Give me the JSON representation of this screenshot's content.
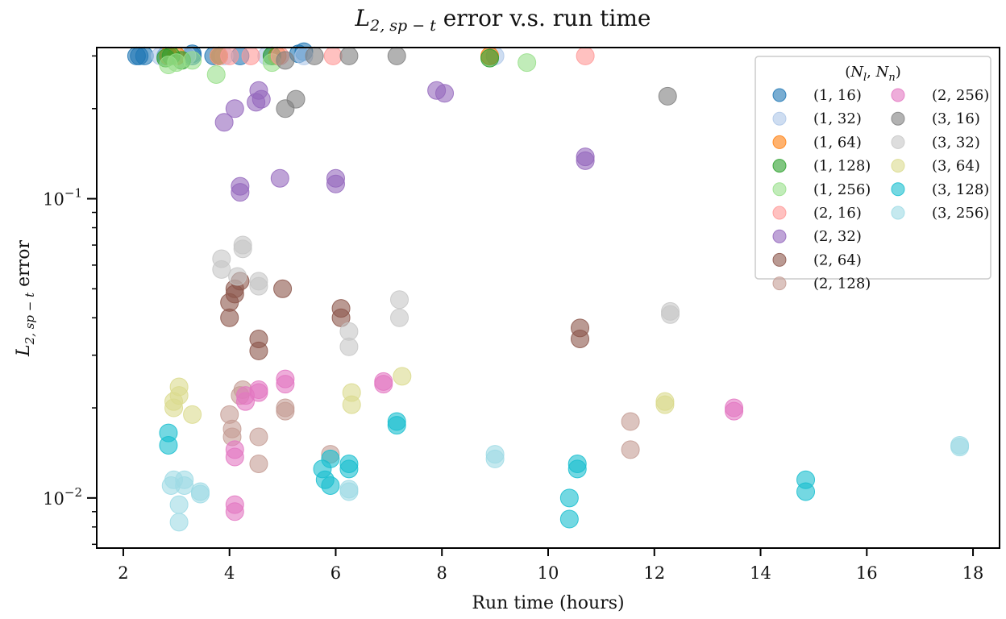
{
  "chart_data": {
    "type": "scatter",
    "title": "L_{2,sp−t} error v.s. run time",
    "title_parts": {
      "sym": "L",
      "sub": "2, sp − t",
      "rest": " error v.s. run time"
    },
    "xlabel": "Run time (hours)",
    "ylabel": "L_{2,sp−t} error",
    "ylabel_parts": {
      "sym": "L",
      "sub": "2, sp − t",
      "rest": " error"
    },
    "xlim": [
      1.5,
      18.5
    ],
    "ylim": [
      0.0068,
      0.32
    ],
    "yscale": "log",
    "xticks": [
      2,
      4,
      6,
      8,
      10,
      12,
      14,
      16,
      18
    ],
    "ytick_labels": [
      {
        "value": 0.1,
        "base": "10",
        "exp": "−1"
      },
      {
        "value": 0.01,
        "base": "10",
        "exp": "−2"
      }
    ],
    "grid": false,
    "legend": {
      "title": "(N_l, N_n)",
      "title_parts": [
        "(",
        "N",
        "l",
        ", ",
        "N",
        "n",
        ")"
      ],
      "placement": "top-right",
      "columns": 2
    },
    "series": [
      {
        "name": "(1, 16)",
        "color": "#1f77b4",
        "points": [
          [
            2.3,
            0.3
          ],
          [
            2.4,
            0.3
          ],
          [
            2.8,
            0.3
          ],
          [
            3.3,
            0.305
          ],
          [
            3.7,
            0.3
          ],
          [
            4.2,
            0.3
          ],
          [
            4.8,
            0.3
          ],
          [
            5.3,
            0.305
          ],
          [
            5.4,
            0.31
          ],
          [
            2.25,
            0.3
          ],
          [
            3.3,
            0.3
          ]
        ]
      },
      {
        "name": "(1, 32)",
        "color": "#aec7e8",
        "points": [
          [
            2.7,
            0.3
          ],
          [
            3.2,
            0.3
          ],
          [
            3.9,
            0.3
          ],
          [
            4.7,
            0.3
          ],
          [
            5.4,
            0.3
          ],
          [
            9.0,
            0.3
          ]
        ]
      },
      {
        "name": "(1, 64)",
        "color": "#ff7f0e",
        "points": [
          [
            2.85,
            0.3
          ],
          [
            3.0,
            0.3
          ],
          [
            3.8,
            0.3
          ],
          [
            4.9,
            0.3
          ],
          [
            8.9,
            0.3
          ]
        ]
      },
      {
        "name": "(1, 128)",
        "color": "#2ca02c",
        "points": [
          [
            2.8,
            0.295
          ],
          [
            2.9,
            0.3
          ],
          [
            3.1,
            0.29
          ],
          [
            3.8,
            0.3
          ],
          [
            4.8,
            0.3
          ],
          [
            8.9,
            0.295
          ]
        ]
      },
      {
        "name": "(1, 256)",
        "color": "#98df8a",
        "points": [
          [
            2.85,
            0.28
          ],
          [
            3.0,
            0.285
          ],
          [
            3.3,
            0.29
          ],
          [
            3.75,
            0.26
          ],
          [
            4.8,
            0.285
          ],
          [
            9.6,
            0.285
          ]
        ]
      },
      {
        "name": "(2, 16)",
        "color": "#ff9896",
        "points": [
          [
            3.8,
            0.3
          ],
          [
            4.0,
            0.3
          ],
          [
            4.4,
            0.3
          ],
          [
            4.95,
            0.3
          ],
          [
            5.95,
            0.3
          ],
          [
            10.7,
            0.3
          ]
        ]
      },
      {
        "name": "(2, 32)",
        "color": "#9467bd",
        "points": [
          [
            3.9,
            0.18
          ],
          [
            4.1,
            0.2
          ],
          [
            4.5,
            0.21
          ],
          [
            4.55,
            0.23
          ],
          [
            4.6,
            0.215
          ],
          [
            4.95,
            0.117
          ],
          [
            4.2,
            0.11
          ],
          [
            4.2,
            0.105
          ],
          [
            6.0,
            0.117
          ],
          [
            6.0,
            0.112
          ],
          [
            7.9,
            0.23
          ],
          [
            8.05,
            0.225
          ],
          [
            10.7,
            0.138
          ],
          [
            10.7,
            0.134
          ]
        ]
      },
      {
        "name": "(2, 64)",
        "color": "#8c564b",
        "points": [
          [
            4.0,
            0.045
          ],
          [
            4.0,
            0.04
          ],
          [
            4.1,
            0.05
          ],
          [
            4.1,
            0.048
          ],
          [
            4.2,
            0.053
          ],
          [
            4.55,
            0.034
          ],
          [
            4.55,
            0.031
          ],
          [
            5.0,
            0.05
          ],
          [
            6.1,
            0.043
          ],
          [
            6.1,
            0.04
          ],
          [
            10.6,
            0.037
          ],
          [
            10.6,
            0.034
          ]
        ]
      },
      {
        "name": "(2, 128)",
        "color": "#c49c94",
        "points": [
          [
            4.0,
            0.019
          ],
          [
            4.05,
            0.017
          ],
          [
            4.05,
            0.016
          ],
          [
            4.2,
            0.022
          ],
          [
            4.25,
            0.023
          ],
          [
            4.55,
            0.016
          ],
          [
            4.55,
            0.013
          ],
          [
            5.05,
            0.02
          ],
          [
            5.05,
            0.0195
          ],
          [
            5.9,
            0.014
          ],
          [
            11.55,
            0.018
          ],
          [
            11.55,
            0.0145
          ]
        ]
      },
      {
        "name": "(2, 256)",
        "color": "#e377c2",
        "points": [
          [
            4.1,
            0.0145
          ],
          [
            4.1,
            0.0137
          ],
          [
            4.1,
            0.0095
          ],
          [
            4.1,
            0.009
          ],
          [
            4.3,
            0.022
          ],
          [
            4.3,
            0.021
          ],
          [
            4.55,
            0.023
          ],
          [
            4.55,
            0.0225
          ],
          [
            5.05,
            0.025
          ],
          [
            5.05,
            0.024
          ],
          [
            6.9,
            0.0245
          ],
          [
            6.9,
            0.024
          ],
          [
            13.5,
            0.02
          ],
          [
            13.5,
            0.0195
          ]
        ]
      },
      {
        "name": "(3, 16)",
        "color": "#7f7f7f",
        "points": [
          [
            5.05,
            0.2
          ],
          [
            5.05,
            0.29
          ],
          [
            5.25,
            0.215
          ],
          [
            5.6,
            0.3
          ],
          [
            6.25,
            0.3
          ],
          [
            7.15,
            0.3
          ],
          [
            12.25,
            0.22
          ]
        ]
      },
      {
        "name": "(3, 32)",
        "color": "#c7c7c7",
        "points": [
          [
            3.85,
            0.063
          ],
          [
            3.85,
            0.058
          ],
          [
            4.15,
            0.055
          ],
          [
            4.25,
            0.07
          ],
          [
            4.25,
            0.068
          ],
          [
            4.55,
            0.053
          ],
          [
            4.55,
            0.051
          ],
          [
            6.25,
            0.036
          ],
          [
            6.25,
            0.032
          ],
          [
            7.2,
            0.046
          ],
          [
            7.2,
            0.04
          ],
          [
            12.3,
            0.042
          ],
          [
            12.3,
            0.041
          ]
        ]
      },
      {
        "name": "(3, 64)",
        "color": "#dbdb8d",
        "points": [
          [
            2.95,
            0.021
          ],
          [
            2.95,
            0.02
          ],
          [
            3.05,
            0.0235
          ],
          [
            3.05,
            0.022
          ],
          [
            3.3,
            0.019
          ],
          [
            6.3,
            0.0225
          ],
          [
            6.3,
            0.0205
          ],
          [
            7.25,
            0.0255
          ],
          [
            12.2,
            0.021
          ],
          [
            12.2,
            0.0205
          ]
        ]
      },
      {
        "name": "(3, 128)",
        "color": "#17becf",
        "points": [
          [
            2.85,
            0.0165
          ],
          [
            2.85,
            0.015
          ],
          [
            5.75,
            0.0125
          ],
          [
            5.8,
            0.0115
          ],
          [
            5.9,
            0.0135
          ],
          [
            5.9,
            0.011
          ],
          [
            6.25,
            0.013
          ],
          [
            6.25,
            0.0125
          ],
          [
            7.15,
            0.018
          ],
          [
            7.15,
            0.0175
          ],
          [
            10.4,
            0.0085
          ],
          [
            10.4,
            0.01
          ],
          [
            10.55,
            0.013
          ],
          [
            10.55,
            0.0125
          ],
          [
            14.85,
            0.0115
          ],
          [
            14.85,
            0.0105
          ]
        ]
      },
      {
        "name": "(3, 256)",
        "color": "#9edae5",
        "points": [
          [
            2.9,
            0.011
          ],
          [
            2.95,
            0.0115
          ],
          [
            3.05,
            0.0095
          ],
          [
            3.05,
            0.0083
          ],
          [
            3.15,
            0.0115
          ],
          [
            3.15,
            0.011
          ],
          [
            3.45,
            0.0105
          ],
          [
            3.45,
            0.0103
          ],
          [
            6.25,
            0.0105
          ],
          [
            6.25,
            0.0107
          ],
          [
            9.0,
            0.014
          ],
          [
            9.0,
            0.0135
          ],
          [
            17.75,
            0.015
          ],
          [
            17.75,
            0.0148
          ]
        ]
      }
    ]
  }
}
